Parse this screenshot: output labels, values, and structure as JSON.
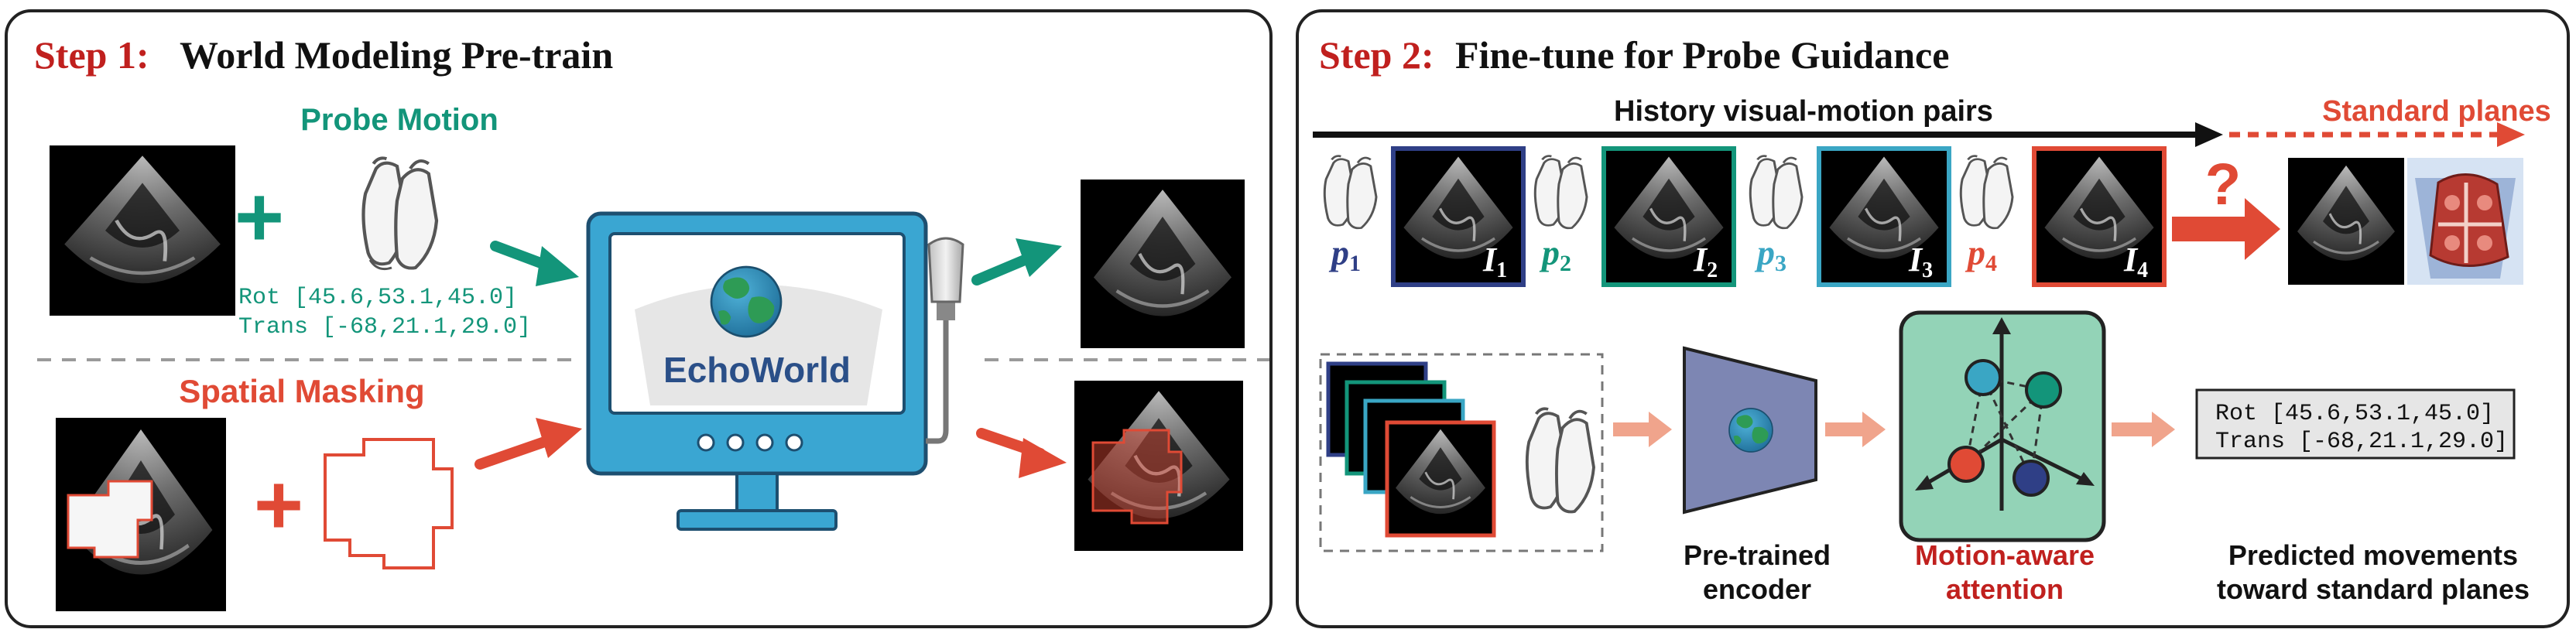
{
  "step1": {
    "step_label": "Step 1:",
    "title": "World Modeling Pre-train",
    "probe_motion_label": "Probe Motion",
    "plus_1": "+",
    "plus_2": "+",
    "rot_text": "Rot [45.6,53.1,45.0]",
    "trans_text": "Trans [-68,21.1,29.0]",
    "spatial_masking_label": "Spatial Masking",
    "monitor_label": "EchoWorld"
  },
  "step2": {
    "step_label": "Step 2:",
    "title": "Fine-tune for Probe Guidance",
    "history_label": "History visual-motion pairs",
    "standard_planes_label": "Standard planes",
    "question_mark": "?",
    "pairs": [
      {
        "p_label": "p",
        "p_sub": "1",
        "i_label": "I",
        "i_sub": "1",
        "p_color": "#2f3f86",
        "frame_color": "#2f3f86"
      },
      {
        "p_label": "p",
        "p_sub": "2",
        "i_label": "I",
        "i_sub": "2",
        "p_color": "#13957a",
        "frame_color": "#13957a"
      },
      {
        "p_label": "p",
        "p_sub": "3",
        "i_label": "I",
        "i_sub": "3",
        "p_color": "#3aa6c4",
        "frame_color": "#3aa6c4"
      },
      {
        "p_label": "p",
        "p_sub": "4",
        "i_label": "I",
        "i_sub": "4",
        "p_color": "#e04a35",
        "frame_color": "#e04a35"
      }
    ],
    "encoder_label_1": "Pre-trained",
    "encoder_label_2": "encoder",
    "attention_label_1": "Motion-aware",
    "attention_label_2": "attention",
    "output_rot": "Rot [45.6,53.1,45.0]",
    "output_trans": "Trans [-68,21.1,29.0]",
    "predicted_label_1": "Predicted movements",
    "predicted_label_2": "toward standard planes"
  },
  "colors": {
    "teal": "#13957a",
    "red": "#e04a35",
    "dark_red": "#c0201e",
    "monitor_blue": "#3aa6d2",
    "navy": "#2f3f86",
    "light_blue": "#3aa6c4",
    "attention_green": "#93d3b7",
    "encoder_gray": "#7d86b3",
    "arrow_salmon": "#f0a48c",
    "output_box": "#e6e6e6"
  }
}
